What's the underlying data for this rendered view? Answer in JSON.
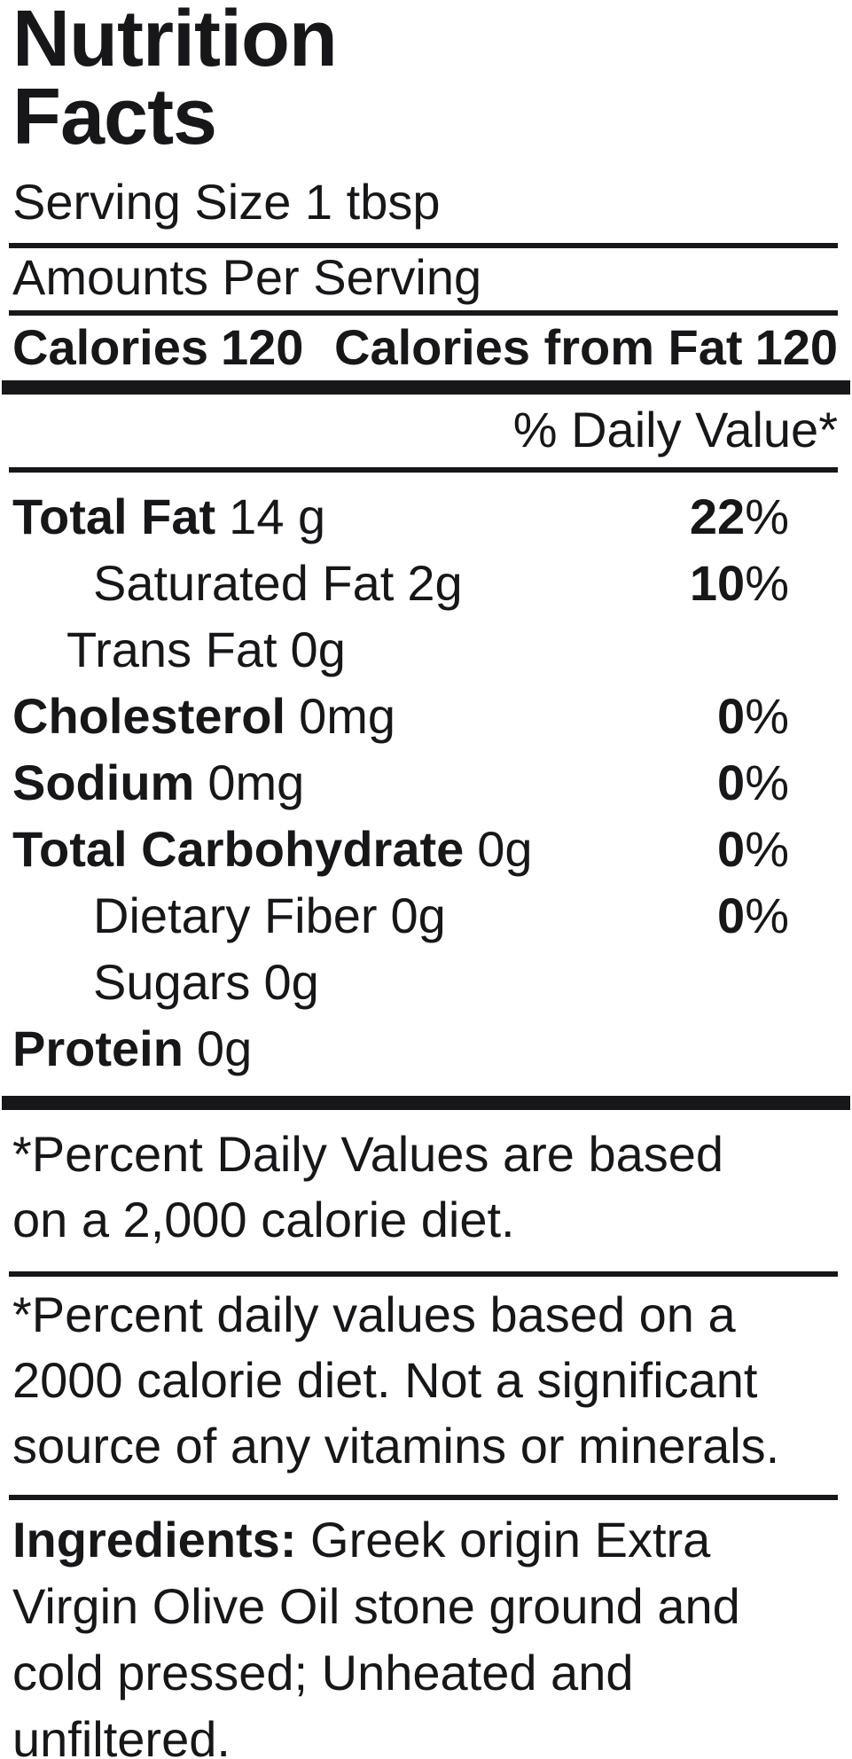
{
  "colors": {
    "text": "#17171a",
    "background": "#ffffff"
  },
  "label": {
    "title_line1": "Nutrition",
    "title_line2": "Facts",
    "serving_size": "Serving Size 1 tbsp",
    "amounts_per_serving": "Amounts Per Serving",
    "calories": {
      "label": "Calories",
      "value": "120"
    },
    "calories_from_fat": {
      "label": "Calories from Fat",
      "value": "120"
    },
    "daily_value_header": "% Daily Value*",
    "rows": [
      {
        "label": "Total Fat",
        "amount": "14 g",
        "dv": "22",
        "pct": "%"
      },
      {
        "label": "Saturated Fat",
        "amount": "2g",
        "dv": "10",
        "pct": "%"
      },
      {
        "label": "Trans Fat",
        "amount": "0g",
        "dv": "",
        "pct": ""
      },
      {
        "label": "Cholesterol",
        "amount": "0mg",
        "dv": "0",
        "pct": "%"
      },
      {
        "label": "Sodium",
        "amount": "0mg",
        "dv": "0",
        "pct": "%"
      },
      {
        "label": "Total Carbohydrate",
        "amount": "0g",
        "dv": "0",
        "pct": "%"
      },
      {
        "label": "Dietary Fiber",
        "amount": "0g",
        "dv": "0",
        "pct": "%"
      },
      {
        "label": "Sugars",
        "amount": "0g",
        "dv": "",
        "pct": ""
      },
      {
        "label": "Protein",
        "amount": "0g",
        "dv": "",
        "pct": ""
      }
    ],
    "footnote1": {
      "lines": [
        "*Percent Daily Values are based",
        "on a 2,000 calorie diet."
      ]
    },
    "footnote2": {
      "lines": [
        "*Percent daily values based on a",
        "2000 calorie diet. Not a significant",
        "source of any vitamins or minerals."
      ]
    },
    "ingredients": {
      "label": "Ingredients:",
      "line1_rest": "Greek origin Extra",
      "line2": "Virgin Olive Oil stone ground and",
      "line3": "cold pressed; Unheated and",
      "line4": "unfiltered."
    }
  }
}
